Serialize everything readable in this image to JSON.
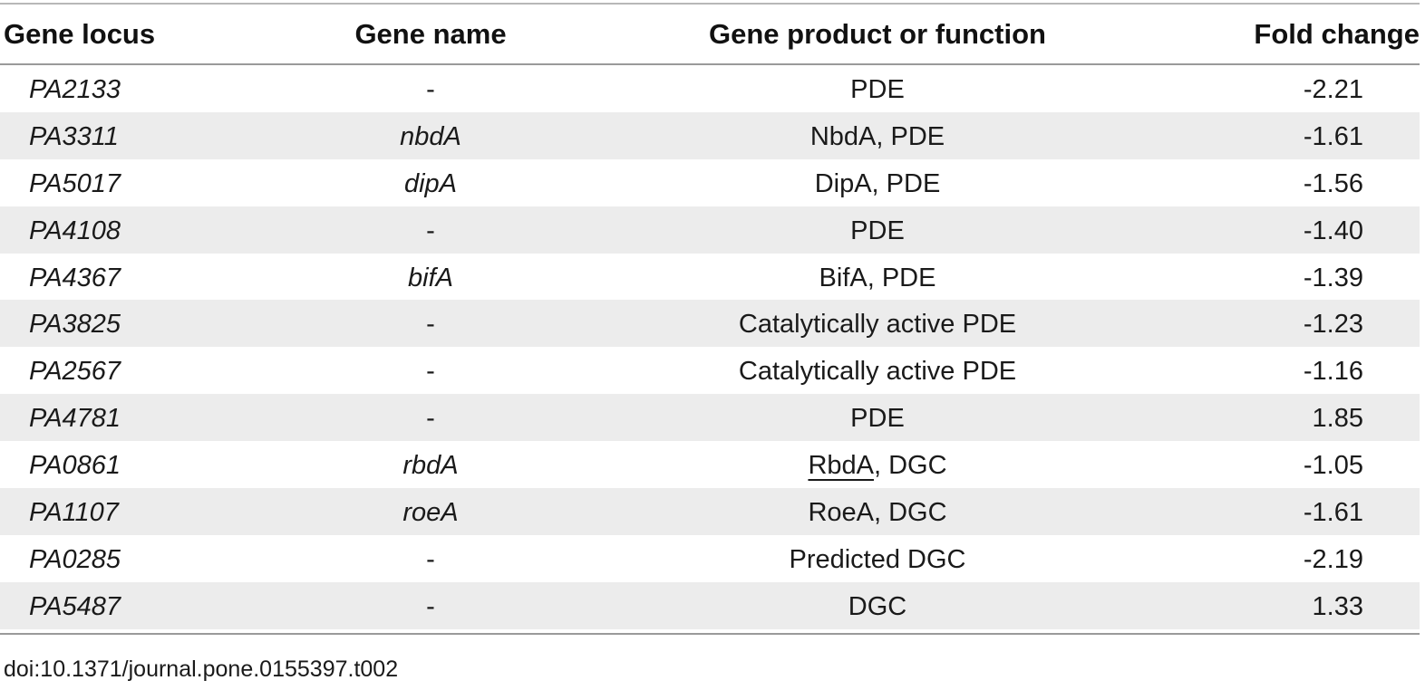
{
  "table": {
    "headers": {
      "locus": "Gene locus",
      "name": "Gene name",
      "product": "Gene product or function",
      "fold": "Fold change"
    },
    "rows": [
      {
        "locus": "PA2133",
        "name": "-",
        "product_pre": "",
        "product_ul": "",
        "product_post": "PDE",
        "fold": "-2.21"
      },
      {
        "locus": "PA3311",
        "name": "nbdA",
        "product_pre": "",
        "product_ul": "",
        "product_post": "NbdA, PDE",
        "fold": "-1.61"
      },
      {
        "locus": "PA5017",
        "name": "dipA",
        "product_pre": "",
        "product_ul": "",
        "product_post": "DipA, PDE",
        "fold": "-1.56"
      },
      {
        "locus": "PA4108",
        "name": "-",
        "product_pre": "",
        "product_ul": "",
        "product_post": "PDE",
        "fold": "-1.40"
      },
      {
        "locus": "PA4367",
        "name": "bifA",
        "product_pre": "",
        "product_ul": "",
        "product_post": "BifA, PDE",
        "fold": "-1.39"
      },
      {
        "locus": "PA3825",
        "name": "-",
        "product_pre": "",
        "product_ul": "",
        "product_post": "Catalytically active PDE",
        "fold": "-1.23"
      },
      {
        "locus": "PA2567",
        "name": "-",
        "product_pre": "",
        "product_ul": "",
        "product_post": "Catalytically active PDE",
        "fold": "-1.16"
      },
      {
        "locus": "PA4781",
        "name": "-",
        "product_pre": "",
        "product_ul": "",
        "product_post": "PDE",
        "fold": "1.85"
      },
      {
        "locus": "PA0861",
        "name": "rbdA",
        "product_pre": "",
        "product_ul": "RbdA",
        "product_post": ", DGC",
        "fold": "-1.05"
      },
      {
        "locus": "PA1107",
        "name": "roeA",
        "product_pre": "",
        "product_ul": "",
        "product_post": "RoeA, DGC",
        "fold": "-1.61"
      },
      {
        "locus": "PA0285",
        "name": "-",
        "product_pre": "",
        "product_ul": "",
        "product_post": "Predicted DGC",
        "fold": "-2.19"
      },
      {
        "locus": "PA5487",
        "name": "-",
        "product_pre": "",
        "product_ul": "",
        "product_post": "DGC",
        "fold": "1.33"
      }
    ]
  },
  "footer": {
    "doi": "doi:10.1371/journal.pone.0155397.t002"
  },
  "colors": {
    "row_shade": "#ececec",
    "rule": "#9a9a9a",
    "text": "#1a1a1a"
  }
}
